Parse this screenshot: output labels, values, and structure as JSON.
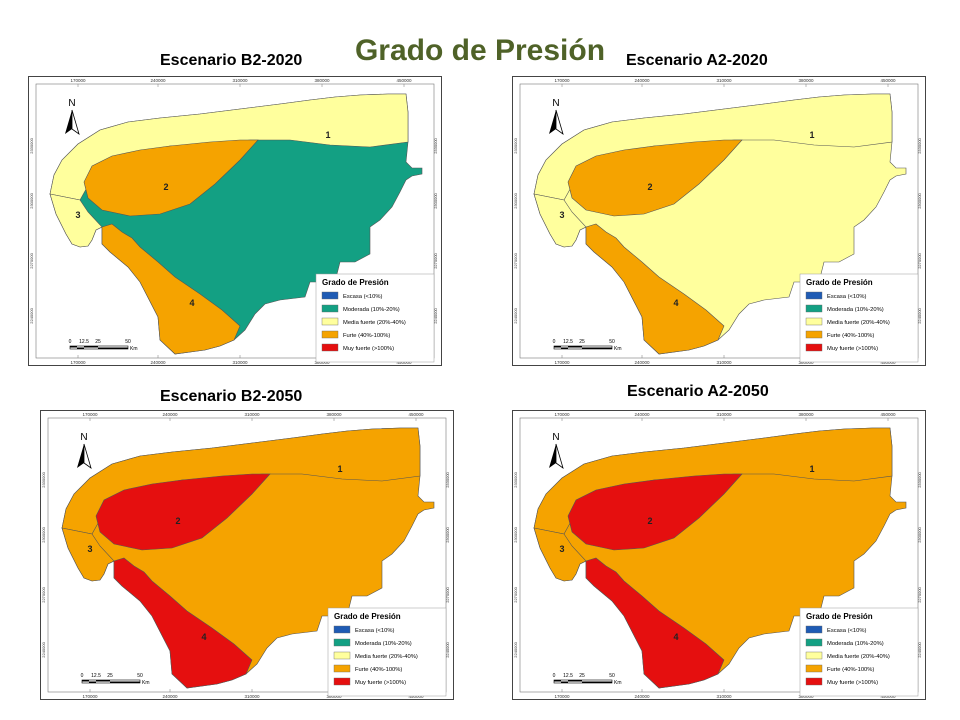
{
  "title": "Grado de Presión",
  "colors": {
    "escasa": "#1f5bb4",
    "moderada": "#13a083",
    "media": "#ffff9d",
    "fuerte": "#f5a300",
    "muy": "#e50f0f",
    "outline": "#555555"
  },
  "legend": {
    "title": "Grado de Presión",
    "items": [
      {
        "key": "escasa",
        "label": "Escasa (<10%)"
      },
      {
        "key": "moderada",
        "label": "Moderada (10%-20%)"
      },
      {
        "key": "media",
        "label": "Media fuerte (20%-40%)"
      },
      {
        "key": "fuerte",
        "label": "Furte (40%-100%)"
      },
      {
        "key": "muy",
        "label": "Muy fuerte (>100%)"
      }
    ]
  },
  "north_label": "N",
  "scale": {
    "ticks": [
      "0",
      "12.5",
      "25",
      "50"
    ],
    "unit": "Km"
  },
  "x_ticks": [
    "170000",
    "240000",
    "310000",
    "380000",
    "450000"
  ],
  "y_ticks": [
    "2330000",
    "2300000",
    "2270000",
    "2240000"
  ],
  "region_labels": [
    "1",
    "2",
    "3",
    "4"
  ],
  "maps": [
    {
      "title": "Escenario B2-2020",
      "regions": {
        "r1": "media",
        "r2": "fuerte",
        "r3": "media",
        "r4": "fuerte",
        "main": "moderada"
      }
    },
    {
      "title": "Escenario A2-2020",
      "regions": {
        "r1": "media",
        "r2": "fuerte",
        "r3": "media",
        "r4": "fuerte",
        "main": "media"
      }
    },
    {
      "title": "Escenario B2-2050",
      "regions": {
        "r1": "fuerte",
        "r2": "muy",
        "r3": "fuerte",
        "r4": "muy",
        "main": "fuerte"
      }
    },
    {
      "title": "Escenario A2-2050",
      "regions": {
        "r1": "fuerte",
        "r2": "muy",
        "r3": "fuerte",
        "r4": "muy",
        "main": "fuerte"
      }
    }
  ]
}
